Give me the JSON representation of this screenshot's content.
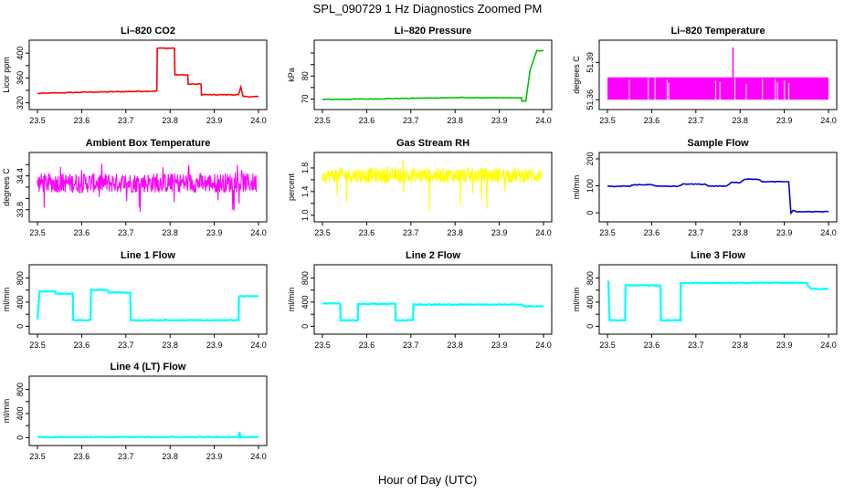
{
  "page": {
    "title": "SPL_090729  1 Hz Diagnostics Zoomed PM",
    "xlabel": "Hour of Day (UTC)"
  },
  "chart_data": [
    {
      "type": "line",
      "title": "Li–820 CO2",
      "ylabel": "Licor ppm",
      "color": "#ff0000",
      "xlim": [
        23.5,
        24.0
      ],
      "ylim": [
        315,
        415
      ],
      "yticks": [
        320,
        340,
        360,
        380,
        400
      ],
      "ytick_labels": [
        "320",
        "",
        "360",
        "",
        "400"
      ],
      "x": [
        23.5,
        23.6,
        23.7,
        23.77,
        23.771,
        23.81,
        23.811,
        23.84,
        23.841,
        23.87,
        23.871,
        23.955,
        23.96,
        23.965,
        24.0
      ],
      "y": [
        335,
        337,
        338,
        339,
        408,
        408,
        365,
        365,
        350,
        350,
        333,
        333,
        345,
        330,
        330
      ]
    },
    {
      "type": "line",
      "title": "Li–820 Pressure",
      "ylabel": "kPa",
      "color": "#00c000",
      "xlim": [
        23.5,
        24.0
      ],
      "ylim": [
        67,
        94
      ],
      "yticks": [
        70,
        75,
        80,
        85,
        90
      ],
      "ytick_labels": [
        "70",
        "",
        "80",
        "",
        ""
      ],
      "x": [
        23.5,
        23.6,
        23.7,
        23.8,
        23.9,
        23.95,
        23.951,
        23.96,
        23.97,
        23.985,
        24.0
      ],
      "y": [
        69.8,
        70.0,
        70.3,
        70.6,
        70.5,
        70.5,
        69.0,
        69.0,
        83.0,
        91.0,
        91.0
      ]
    },
    {
      "type": "area",
      "title": "Li–820 Temperature",
      "ylabel": "degrees C",
      "color": "#ff00ff",
      "xlim": [
        23.5,
        24.0
      ],
      "ylim": [
        51.355,
        51.405
      ],
      "yticks": [
        51.36,
        51.39
      ],
      "ytick_labels": [
        "51.36",
        "51.39"
      ],
      "band": [
        51.36,
        51.378
      ],
      "spike": {
        "x": 23.784,
        "y": 51.402
      }
    },
    {
      "type": "line",
      "title": "Ambient Box Temperature",
      "ylabel": "degrees C",
      "color": "#ff00ff",
      "xlim": [
        23.5,
        24.0
      ],
      "ylim": [
        33.65,
        34.75
      ],
      "yticks": [
        33.8,
        34.0,
        34.2,
        34.4,
        34.6
      ],
      "ytick_labels": [
        "33.8",
        "",
        "",
        "34.4",
        ""
      ],
      "band": [
        34.1,
        34.45
      ],
      "noise_range": [
        33.75,
        34.65
      ]
    },
    {
      "type": "line",
      "title": "Gas Stream RH",
      "ylabel": "percent",
      "color": "#ffff00",
      "xlim": [
        23.5,
        24.0
      ],
      "ylim": [
        0.95,
        2.0
      ],
      "yticks": [
        1.0,
        1.2,
        1.4,
        1.6,
        1.8
      ],
      "ytick_labels": [
        "1.0",
        "",
        "1.4",
        "",
        "1.8"
      ],
      "band": [
        1.55,
        1.8
      ],
      "noise_range": [
        1.05,
        1.95
      ]
    },
    {
      "type": "line",
      "title": "Sample Flow",
      "ylabel": "ml/min",
      "color": "#0000cc",
      "xlim": [
        23.5,
        24.0
      ],
      "ylim": [
        -20,
        210
      ],
      "yticks": [
        0,
        100,
        200
      ],
      "ytick_labels": [
        "0",
        "100",
        "200"
      ],
      "x": [
        23.5,
        23.55,
        23.56,
        23.6,
        23.61,
        23.66,
        23.67,
        23.72,
        23.73,
        23.77,
        23.78,
        23.8,
        23.81,
        23.84,
        23.85,
        23.91,
        23.915,
        23.92,
        23.93,
        24.0
      ],
      "y": [
        98,
        98,
        104,
        104,
        98,
        98,
        106,
        106,
        99,
        99,
        112,
        112,
        125,
        125,
        115,
        115,
        0,
        8,
        4,
        4
      ]
    },
    {
      "type": "line",
      "title": "Line 1 Flow",
      "ylabel": "ml/min",
      "color": "#00ffff",
      "xlim": [
        23.5,
        24.0
      ],
      "ylim": [
        -70,
        960
      ],
      "yticks": [
        0,
        200,
        400,
        600,
        800
      ],
      "ytick_labels": [
        "0",
        "",
        "400",
        "",
        "800"
      ],
      "x": [
        23.5,
        23.505,
        23.54,
        23.541,
        23.58,
        23.581,
        23.62,
        23.621,
        23.66,
        23.661,
        23.71,
        23.711,
        23.955,
        23.956,
        24.0
      ],
      "y": [
        120,
        580,
        580,
        540,
        540,
        100,
        100,
        600,
        600,
        560,
        560,
        100,
        100,
        500,
        500
      ]
    },
    {
      "type": "line",
      "title": "Line 2 Flow",
      "ylabel": "ml/min",
      "color": "#00ffff",
      "xlim": [
        23.5,
        24.0
      ],
      "ylim": [
        -70,
        960
      ],
      "yticks": [
        0,
        200,
        400,
        600,
        800
      ],
      "ytick_labels": [
        "0",
        "",
        "400",
        "",
        "800"
      ],
      "x": [
        23.5,
        23.54,
        23.541,
        23.58,
        23.581,
        23.665,
        23.666,
        23.705,
        23.706,
        23.95,
        23.96,
        24.0
      ],
      "y": [
        380,
        380,
        100,
        100,
        370,
        370,
        100,
        100,
        360,
        360,
        330,
        330
      ]
    },
    {
      "type": "line",
      "title": "Line 3 Flow",
      "ylabel": "ml/min",
      "color": "#00ffff",
      "xlim": [
        23.5,
        24.0
      ],
      "ylim": [
        -70,
        960
      ],
      "yticks": [
        0,
        200,
        400,
        600,
        800
      ],
      "ytick_labels": [
        "0",
        "",
        "400",
        "",
        "800"
      ],
      "x": [
        23.5,
        23.502,
        23.505,
        23.54,
        23.541,
        23.62,
        23.621,
        23.665,
        23.666,
        23.95,
        23.96,
        24.0
      ],
      "y": [
        740,
        740,
        100,
        100,
        680,
        680,
        100,
        100,
        720,
        720,
        620,
        620
      ]
    },
    {
      "type": "line",
      "title": "Line 4 (LT) Flow",
      "ylabel": "ml/min",
      "color": "#00ffff",
      "xlim": [
        23.5,
        24.0
      ],
      "ylim": [
        -70,
        960
      ],
      "yticks": [
        0,
        200,
        400,
        600,
        800
      ],
      "ytick_labels": [
        "0",
        "",
        "400",
        "",
        "800"
      ],
      "x": [
        23.5,
        23.955,
        23.957,
        23.96,
        24.0
      ],
      "y": [
        10,
        10,
        90,
        10,
        10
      ]
    }
  ],
  "x_tick_values": [
    23.5,
    23.6,
    23.7,
    23.8,
    23.9,
    24.0
  ],
  "x_tick_labels": [
    "23.5",
    "23.6",
    "23.7",
    "23.8",
    "23.9",
    "24.0"
  ]
}
